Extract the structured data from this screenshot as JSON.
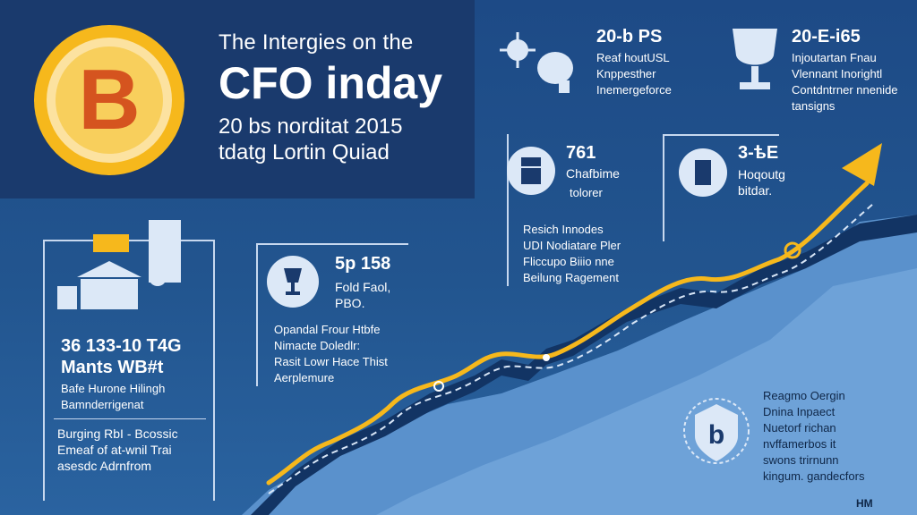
{
  "title": {
    "line1": "The Intergies on the",
    "line2": "CFO inday",
    "line3": "20 bs norditat 2015",
    "line4": "tdatg Lortin Quiad"
  },
  "coin": {
    "glyph": "B",
    "color": "#f6b81c"
  },
  "top_card_1": {
    "heading": "20-b PS",
    "lines": [
      "Reaf houtUSL",
      "Knppesther",
      "Inemergeforce"
    ]
  },
  "top_card_2": {
    "heading": "20-E-i65",
    "lines": [
      "Injoutartan Fnau",
      "Vlennant Inorightl",
      "Contdntrner nnenide",
      "tansigns"
    ]
  },
  "mid_card_1": {
    "heading": "761",
    "subheading": "Chafbime",
    "sub2": "tolorer",
    "lines": [
      "Resich Innodes",
      "UDI Nodiatare Pler",
      "Fliccupo Biiio nne",
      "Beilung Ragement"
    ]
  },
  "mid_card_2": {
    "heading": "3-ѣE",
    "lines": [
      "Hoqoutg",
      "bitdar."
    ]
  },
  "left_card": {
    "heading": "36 133-10 T4G",
    "subheading": "Mants WB#t",
    "lines": [
      "Bafe Hurone Hilingh",
      "Bamnderrigenat"
    ],
    "lines2": [
      "Burging RbI - Bcossic",
      "Emeaf of at-wnil Trai",
      "asesdc Adrnfrom"
    ]
  },
  "center_card": {
    "heading": "5p 158",
    "lines": [
      "Fold Faol,",
      "PBO."
    ],
    "lines2": [
      "Opandal Frour Htbfe",
      "Nimacte Doledlr:",
      "Rasit Lowr Hace Thist",
      "Aerplemure"
    ]
  },
  "bottom_right": {
    "lines": [
      "Reagmo Oergin",
      "Dnina Inpaect",
      "Nuetorf richan",
      "nvffamerbos it",
      "swons trirnunn",
      "kingum. gandecfors"
    ],
    "badge_letter": "b"
  },
  "corner_mark": "HM",
  "colors": {
    "arrow": "#f6b81c",
    "panel": "#1a3a6d",
    "background": "#1f4f8c",
    "mountain": "#4f86c6"
  }
}
